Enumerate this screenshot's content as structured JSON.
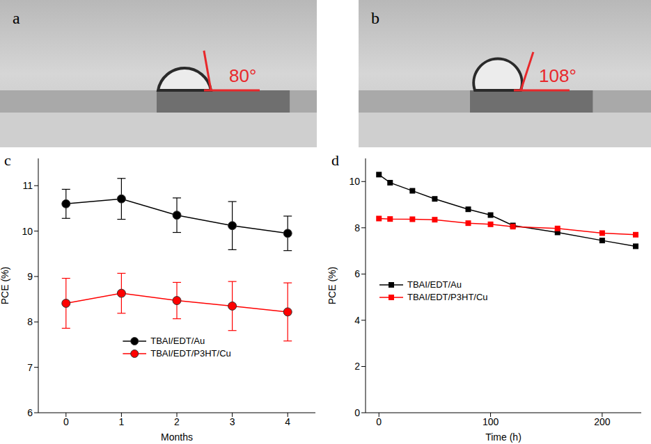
{
  "images": [
    {
      "panel": "a",
      "contact_angle": 80,
      "label": "80°"
    },
    {
      "panel": "b",
      "contact_angle": 108,
      "label": "108°"
    }
  ],
  "chart_data": [
    {
      "panel": "c",
      "type": "line",
      "xlabel": "Months",
      "ylabel": "PCE (%)",
      "x": [
        0,
        1,
        2,
        3,
        4
      ],
      "xlim": [
        -0.5,
        4.5
      ],
      "xticks": [
        0,
        1,
        2,
        3,
        4
      ],
      "ylim": [
        6,
        11.6
      ],
      "yticks": [
        6,
        7,
        8,
        9,
        10,
        11
      ],
      "legend": "lower center",
      "series": [
        {
          "name": "TBAI/EDT/Au",
          "color": "#000000",
          "marker": "circle",
          "values": [
            10.6,
            10.71,
            10.35,
            10.12,
            9.95
          ],
          "errors": [
            0.32,
            0.45,
            0.38,
            0.53,
            0.38
          ]
        },
        {
          "name": "TBAI/EDT/P3HT/Cu",
          "color": "#ff0000",
          "marker": "circle",
          "values": [
            8.41,
            8.63,
            8.47,
            8.35,
            8.22
          ],
          "errors": [
            0.55,
            0.44,
            0.4,
            0.54,
            0.64
          ]
        }
      ]
    },
    {
      "panel": "d",
      "type": "line",
      "xlabel": "Time (h)",
      "ylabel": "PCE (%)",
      "x": [
        0,
        10,
        30,
        50,
        80,
        100,
        120,
        160,
        200,
        230
      ],
      "xlim": [
        -12,
        235
      ],
      "xticks": [
        0,
        100,
        200
      ],
      "ylim": [
        0,
        11
      ],
      "yticks": [
        0,
        2,
        4,
        6,
        8,
        10
      ],
      "legend": "center left",
      "series": [
        {
          "name": "TBAI/EDT/Au",
          "color": "#000000",
          "marker": "square",
          "values": [
            10.3,
            9.95,
            9.6,
            9.25,
            8.8,
            8.55,
            8.1,
            7.8,
            7.45,
            7.2
          ]
        },
        {
          "name": "TBAI/EDT/P3HT/Cu",
          "color": "#ff0000",
          "marker": "square",
          "values": [
            8.4,
            8.38,
            8.37,
            8.35,
            8.2,
            8.15,
            8.05,
            7.97,
            7.77,
            7.7
          ]
        }
      ]
    }
  ]
}
